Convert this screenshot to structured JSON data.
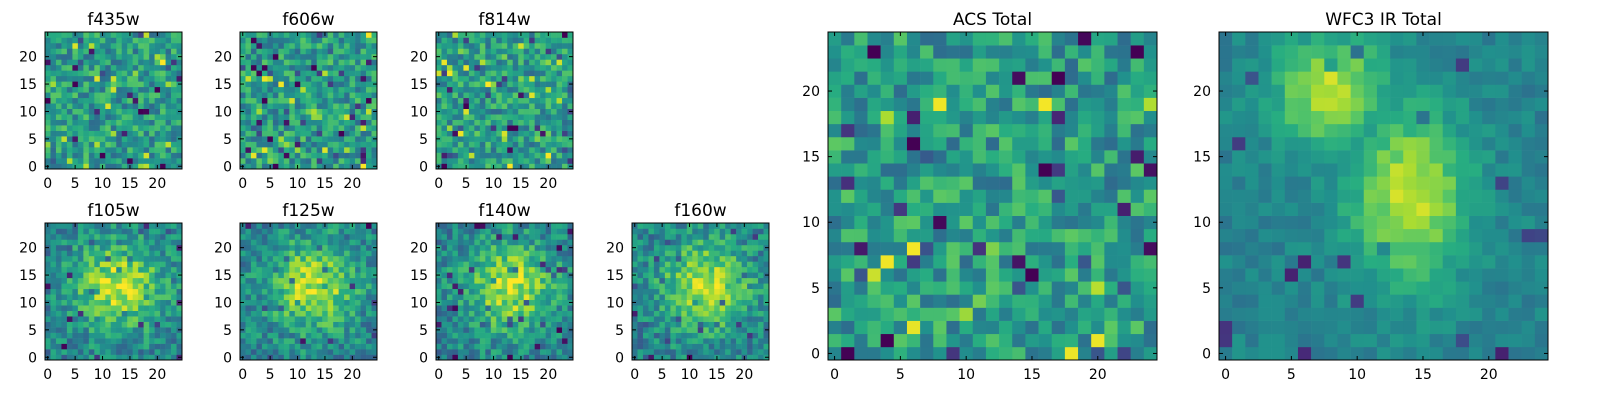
{
  "chart_data": [
    {
      "type": "heatmap",
      "title": "f435w",
      "grid_size": 25,
      "xlim": [
        0,
        24
      ],
      "ylim": [
        0,
        24
      ],
      "xticks": [
        0,
        5,
        10,
        15,
        20
      ],
      "yticks": [
        0,
        5,
        10,
        15,
        20
      ],
      "colormap": "viridis",
      "pattern": "noise",
      "seed": 11
    },
    {
      "type": "heatmap",
      "title": "f606w",
      "grid_size": 25,
      "xlim": [
        0,
        24
      ],
      "ylim": [
        0,
        24
      ],
      "xticks": [
        0,
        5,
        10,
        15,
        20
      ],
      "yticks": [
        0,
        5,
        10,
        15,
        20
      ],
      "colormap": "viridis",
      "pattern": "noise",
      "seed": 23
    },
    {
      "type": "heatmap",
      "title": "f814w",
      "grid_size": 25,
      "xlim": [
        0,
        24
      ],
      "ylim": [
        0,
        24
      ],
      "xticks": [
        0,
        5,
        10,
        15,
        20
      ],
      "yticks": [
        0,
        5,
        10,
        15,
        20
      ],
      "colormap": "viridis",
      "pattern": "noise",
      "seed": 37
    },
    {
      "type": "heatmap",
      "title": "f105w",
      "grid_size": 25,
      "xlim": [
        0,
        24
      ],
      "ylim": [
        0,
        24
      ],
      "xticks": [
        0,
        5,
        10,
        15,
        20
      ],
      "yticks": [
        0,
        5,
        10,
        15,
        20
      ],
      "colormap": "viridis",
      "pattern": "blob",
      "seed": 41
    },
    {
      "type": "heatmap",
      "title": "f125w",
      "grid_size": 25,
      "xlim": [
        0,
        24
      ],
      "ylim": [
        0,
        24
      ],
      "xticks": [
        0,
        5,
        10,
        15,
        20
      ],
      "yticks": [
        0,
        5,
        10,
        15,
        20
      ],
      "colormap": "viridis",
      "pattern": "blob",
      "seed": 53
    },
    {
      "type": "heatmap",
      "title": "f140w",
      "grid_size": 25,
      "xlim": [
        0,
        24
      ],
      "ylim": [
        0,
        24
      ],
      "xticks": [
        0,
        5,
        10,
        15,
        20
      ],
      "yticks": [
        0,
        5,
        10,
        15,
        20
      ],
      "colormap": "viridis",
      "pattern": "blob",
      "seed": 67
    },
    {
      "type": "heatmap",
      "title": "f160w",
      "grid_size": 25,
      "xlim": [
        0,
        24
      ],
      "ylim": [
        0,
        24
      ],
      "xticks": [
        0,
        5,
        10,
        15,
        20
      ],
      "yticks": [
        0,
        5,
        10,
        15,
        20
      ],
      "colormap": "viridis",
      "pattern": "blob",
      "seed": 79
    },
    {
      "type": "heatmap",
      "title": "ACS Total",
      "grid_size": 25,
      "xlim": [
        0,
        24
      ],
      "ylim": [
        0,
        24
      ],
      "xticks": [
        0,
        5,
        10,
        15,
        20
      ],
      "yticks": [
        0,
        5,
        10,
        15,
        20
      ],
      "colormap": "viridis",
      "pattern": "noise",
      "seed": 97
    },
    {
      "type": "heatmap",
      "title": "WFC3 IR Total",
      "grid_size": 25,
      "xlim": [
        0,
        24
      ],
      "ylim": [
        0,
        24
      ],
      "xticks": [
        0,
        5,
        10,
        15,
        20
      ],
      "yticks": [
        0,
        5,
        10,
        15,
        20
      ],
      "colormap": "viridis",
      "pattern": "smooth",
      "seed": 101
    }
  ]
}
